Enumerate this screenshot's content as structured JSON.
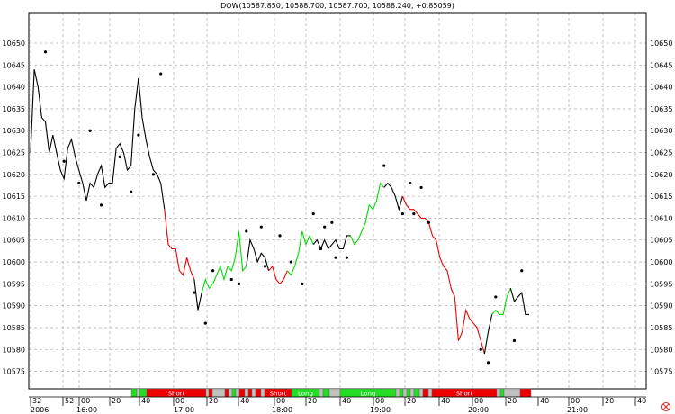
{
  "chart_data": {
    "type": "line",
    "title": "DOW(10587.850, 10588.700, 10587.700, 10588.240, +0.85059)",
    "ylim": [
      10571,
      10657
    ],
    "y_ticks": [
      10575,
      10580,
      10585,
      10590,
      10595,
      10600,
      10605,
      10610,
      10615,
      10620,
      10625,
      10630,
      10635,
      10640,
      10645,
      10650
    ],
    "grid": true,
    "x_ticks_top_row": [
      "32",
      "52",
      "00",
      "20",
      "40",
      "00",
      "20",
      "40",
      "00",
      "20",
      "40",
      "00",
      "20",
      "40",
      "00",
      "20",
      "40",
      "00",
      "20",
      "40"
    ],
    "x_ticks_bottom_row": [
      "2006",
      "16:00",
      "17:00",
      "18:00",
      "19:00",
      "20:00",
      "21:00"
    ],
    "series": [
      {
        "values": [
          10625,
          10644,
          10640,
          10633,
          10632,
          10625,
          10629,
          10625,
          10621,
          10619,
          10626,
          10628,
          10624,
          10621,
          10618,
          10614,
          10618,
          10617,
          10620,
          10622,
          10617,
          10618,
          10618,
          10626,
          10627,
          10625,
          10621,
          10622,
          10635,
          10642,
          10633,
          10628,
          10624,
          10621,
          10620,
          10618,
          10612,
          10604,
          10603,
          10603,
          10598,
          10597,
          10601,
          10598,
          10596,
          10589,
          10593,
          10596,
          10594,
          10595,
          10597,
          10599,
          10596,
          10599,
          10598,
          10601,
          10607,
          10598,
          10599,
          10605,
          10603,
          10600,
          10602,
          10601,
          10598,
          10599,
          10596,
          10595,
          10596,
          10598,
          10597,
          10599,
          10602,
          10607,
          10604,
          10606,
          10604,
          10605,
          10603,
          10605,
          10603,
          10604,
          10605,
          10603,
          10603,
          10606,
          10606,
          10604,
          10605,
          10607,
          10609,
          10613,
          10612,
          10614,
          10618,
          10617,
          10618,
          10617,
          10615,
          10612,
          10615,
          10613,
          10612,
          10612,
          10611,
          10610,
          10610,
          10609,
          10606,
          10605,
          10601,
          10599,
          10598,
          10594,
          10592,
          10582,
          10584,
          10589,
          10587,
          10586,
          10585,
          10582,
          10579,
          10584,
          10588,
          10589,
          10588,
          10588,
          10592,
          10594,
          10591,
          10592,
          10593,
          10588,
          10588
        ],
        "segment_colors": [
          {
            "from": 0,
            "to": 36,
            "color": "#000000"
          },
          {
            "from": 36,
            "to": 44,
            "color": "#ee0000"
          },
          {
            "from": 44,
            "to": 46,
            "color": "#000000"
          },
          {
            "from": 46,
            "to": 58,
            "color": "#00dd00"
          },
          {
            "from": 58,
            "to": 64,
            "color": "#000000"
          },
          {
            "from": 64,
            "to": 69,
            "color": "#ee0000"
          },
          {
            "from": 69,
            "to": 76,
            "color": "#00dd00"
          },
          {
            "from": 76,
            "to": 86,
            "color": "#000000"
          },
          {
            "from": 86,
            "to": 95,
            "color": "#00dd00"
          },
          {
            "from": 95,
            "to": 100,
            "color": "#000000"
          },
          {
            "from": 100,
            "to": 122,
            "color": "#ee0000"
          },
          {
            "from": 122,
            "to": 124,
            "color": "#000000"
          },
          {
            "from": 124,
            "to": 129,
            "color": "#00dd00"
          },
          {
            "from": 129,
            "to": 136,
            "color": "#000000"
          },
          {
            "from": 136,
            "to": 138,
            "color": "#ee0000"
          }
        ]
      }
    ],
    "dots": [
      {
        "i": 4,
        "v": 10648
      },
      {
        "i": 9,
        "v": 10623
      },
      {
        "i": 13,
        "v": 10618
      },
      {
        "i": 16,
        "v": 10630
      },
      {
        "i": 19,
        "v": 10613
      },
      {
        "i": 24,
        "v": 10624
      },
      {
        "i": 27,
        "v": 10616
      },
      {
        "i": 29,
        "v": 10629
      },
      {
        "i": 33,
        "v": 10620
      },
      {
        "i": 35,
        "v": 10643
      },
      {
        "i": 44,
        "v": 10593
      },
      {
        "i": 47,
        "v": 10586
      },
      {
        "i": 49,
        "v": 10598
      },
      {
        "i": 54,
        "v": 10596
      },
      {
        "i": 56,
        "v": 10595
      },
      {
        "i": 58,
        "v": 10607
      },
      {
        "i": 62,
        "v": 10608
      },
      {
        "i": 63,
        "v": 10599
      },
      {
        "i": 67,
        "v": 10606
      },
      {
        "i": 70,
        "v": 10600
      },
      {
        "i": 73,
        "v": 10595
      },
      {
        "i": 76,
        "v": 10611
      },
      {
        "i": 78,
        "v": 10603
      },
      {
        "i": 79,
        "v": 10608
      },
      {
        "i": 81,
        "v": 10609
      },
      {
        "i": 82,
        "v": 10601
      },
      {
        "i": 85,
        "v": 10601
      },
      {
        "i": 95,
        "v": 10622
      },
      {
        "i": 100,
        "v": 10611
      },
      {
        "i": 102,
        "v": 10618
      },
      {
        "i": 103,
        "v": 10611
      },
      {
        "i": 105,
        "v": 10617
      },
      {
        "i": 107,
        "v": 10609
      },
      {
        "i": 121,
        "v": 10580
      },
      {
        "i": 123,
        "v": 10577
      },
      {
        "i": 125,
        "v": 10592
      },
      {
        "i": 130,
        "v": 10582
      },
      {
        "i": 132,
        "v": 10598
      }
    ],
    "signal_band": [
      {
        "from": 146,
        "to": 152,
        "color": "#22dd22",
        "label": ""
      },
      {
        "from": 152,
        "to": 155,
        "color": "#c0c0c0",
        "label": ""
      },
      {
        "from": 155,
        "to": 163,
        "color": "#22dd22",
        "label": ""
      },
      {
        "from": 163,
        "to": 229,
        "color": "#ee0000",
        "label": "Short"
      },
      {
        "from": 229,
        "to": 232,
        "color": "#c0c0c0",
        "label": ""
      },
      {
        "from": 232,
        "to": 236,
        "color": "#ee0000",
        "label": ""
      },
      {
        "from": 236,
        "to": 250,
        "color": "#c0c0c0",
        "label": ""
      },
      {
        "from": 250,
        "to": 254,
        "color": "#ee0000",
        "label": ""
      },
      {
        "from": 254,
        "to": 258,
        "color": "#c0c0c0",
        "label": ""
      },
      {
        "from": 258,
        "to": 262,
        "color": "#22dd22",
        "label": ""
      },
      {
        "from": 262,
        "to": 266,
        "color": "#c0c0c0",
        "label": ""
      },
      {
        "from": 266,
        "to": 272,
        "color": "#ee0000",
        "label": ""
      },
      {
        "from": 272,
        "to": 276,
        "color": "#c0c0c0",
        "label": ""
      },
      {
        "from": 276,
        "to": 280,
        "color": "#ee0000",
        "label": ""
      },
      {
        "from": 280,
        "to": 284,
        "color": "#c0c0c0",
        "label": ""
      },
      {
        "from": 284,
        "to": 290,
        "color": "#ee0000",
        "label": ""
      },
      {
        "from": 290,
        "to": 294,
        "color": "#c0c0c0",
        "label": ""
      },
      {
        "from": 294,
        "to": 324,
        "color": "#ee0000",
        "label": "Short"
      },
      {
        "from": 324,
        "to": 355,
        "color": "#22dd22",
        "label": "Long"
      },
      {
        "from": 355,
        "to": 359,
        "color": "#c0c0c0",
        "label": ""
      },
      {
        "from": 359,
        "to": 366,
        "color": "#22dd22",
        "label": ""
      },
      {
        "from": 366,
        "to": 378,
        "color": "#c0c0c0",
        "label": ""
      },
      {
        "from": 378,
        "to": 440,
        "color": "#22dd22",
        "label": "Long"
      },
      {
        "from": 440,
        "to": 444,
        "color": "#c0c0c0",
        "label": ""
      },
      {
        "from": 444,
        "to": 448,
        "color": "#22dd22",
        "label": ""
      },
      {
        "from": 448,
        "to": 452,
        "color": "#c0c0c0",
        "label": ""
      },
      {
        "from": 452,
        "to": 456,
        "color": "#22dd22",
        "label": ""
      },
      {
        "from": 456,
        "to": 460,
        "color": "#c0c0c0",
        "label": ""
      },
      {
        "from": 460,
        "to": 466,
        "color": "#22dd22",
        "label": ""
      },
      {
        "from": 466,
        "to": 470,
        "color": "#c0c0c0",
        "label": ""
      },
      {
        "from": 470,
        "to": 476,
        "color": "#ee0000",
        "label": ""
      },
      {
        "from": 476,
        "to": 480,
        "color": "#c0c0c0",
        "label": ""
      },
      {
        "from": 480,
        "to": 552,
        "color": "#ee0000",
        "label": "Short"
      },
      {
        "from": 552,
        "to": 556,
        "color": "#c0c0c0",
        "label": ""
      },
      {
        "from": 556,
        "to": 560,
        "color": "#22dd22",
        "label": ""
      },
      {
        "from": 560,
        "to": 578,
        "color": "#c0c0c0",
        "label": ""
      },
      {
        "from": 578,
        "to": 590,
        "color": "#ee0000",
        "label": ""
      }
    ],
    "close_icon": "close-circle-icon"
  }
}
